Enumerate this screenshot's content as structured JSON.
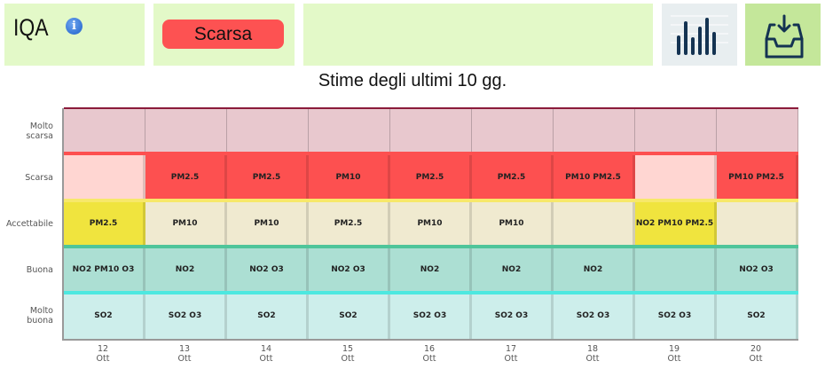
{
  "header": {
    "iqa_label": "IQA",
    "info_icon": "info-icon",
    "status_label": "Scarsa",
    "status_color": "#fd5252",
    "chart_icon": "bar-chart-icon",
    "download_icon": "download-tray-icon"
  },
  "title": "Stime degli ultimi 10 gg.",
  "chart_data": {
    "type": "table",
    "levels": [
      "Molto scarsa",
      "Scarsa",
      "Accettabile",
      "Buona",
      "Molto buona"
    ],
    "level_colors": {
      "Molto scarsa": "#e8c8ce",
      "Scarsa": "#fd5050",
      "Accettabile": "#f0e43e",
      "Buona": "#acdfd3",
      "Molto buona": "#cdeeeb"
    },
    "days": [
      {
        "day": "12",
        "month": "Ott",
        "cells": [
          "",
          "",
          "PM2.5",
          "NO2 PM10 O3",
          "SO2"
        ]
      },
      {
        "day": "13",
        "month": "Ott",
        "cells": [
          "",
          "PM2.5",
          "PM10",
          "NO2",
          "SO2 O3"
        ]
      },
      {
        "day": "14",
        "month": "Ott",
        "cells": [
          "",
          "PM2.5",
          "PM10",
          "NO2 O3",
          "SO2"
        ]
      },
      {
        "day": "15",
        "month": "Ott",
        "cells": [
          "",
          "PM10",
          "PM2.5",
          "NO2 O3",
          "SO2"
        ]
      },
      {
        "day": "16",
        "month": "Ott",
        "cells": [
          "",
          "PM2.5",
          "PM10",
          "NO2",
          "SO2 O3"
        ]
      },
      {
        "day": "17",
        "month": "Ott",
        "cells": [
          "",
          "PM2.5",
          "PM10",
          "NO2",
          "SO2 O3"
        ]
      },
      {
        "day": "18",
        "month": "Ott",
        "cells": [
          "",
          "PM10 PM2.5",
          "",
          "NO2",
          "SO2 O3"
        ]
      },
      {
        "day": "19",
        "month": "Ott",
        "cells": [
          "",
          "",
          "NO2 PM10 PM2.5",
          "",
          "SO2 O3"
        ]
      },
      {
        "day": "20",
        "month": "Ott",
        "cells": [
          "",
          "PM10 PM2.5",
          "",
          "NO2 O3",
          "SO2"
        ]
      }
    ]
  }
}
